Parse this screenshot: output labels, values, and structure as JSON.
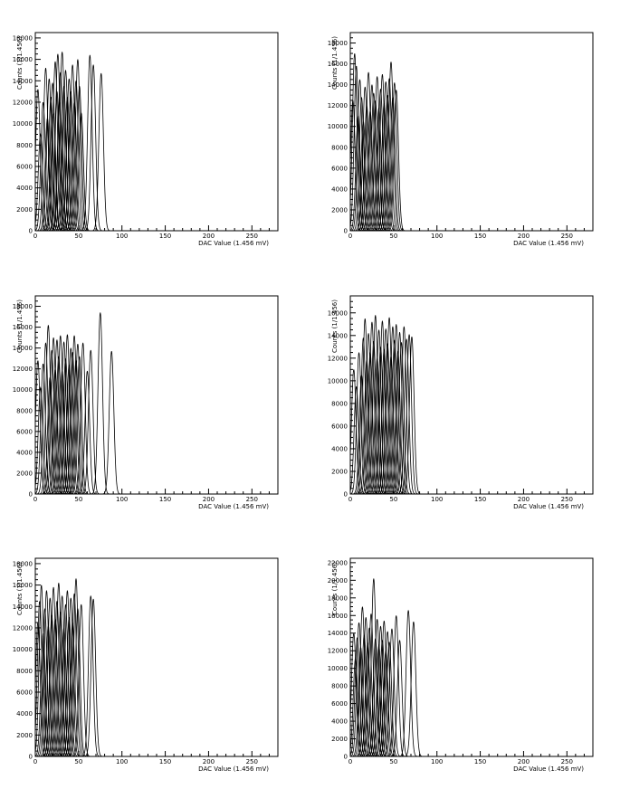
{
  "chart_data": [
    {
      "type": "line",
      "xlabel": "DAC Value (1.456 mV)",
      "ylabel": "Counts (1/1.456)",
      "xlim": [
        0,
        280
      ],
      "ylim": [
        0,
        18500
      ],
      "x_ticks": [
        0,
        50,
        100,
        150,
        200,
        250
      ],
      "y_ticks": [
        0,
        2000,
        4000,
        6000,
        8000,
        10000,
        12000,
        14000,
        16000,
        18000
      ],
      "series_description": "approx. 64 overlapping gaussian-like peaks (one per channel)",
      "peaks": [
        {
          "center": 3,
          "height": 13200
        },
        {
          "center": 6,
          "height": 9000
        },
        {
          "center": 9,
          "height": 12000
        },
        {
          "center": 12,
          "height": 15200
        },
        {
          "center": 14,
          "height": 10500
        },
        {
          "center": 16,
          "height": 14200
        },
        {
          "center": 18,
          "height": 12500
        },
        {
          "center": 20,
          "height": 13800
        },
        {
          "center": 21,
          "height": 11000
        },
        {
          "center": 23,
          "height": 15800
        },
        {
          "center": 25,
          "height": 13000
        },
        {
          "center": 26,
          "height": 16500
        },
        {
          "center": 28,
          "height": 12000
        },
        {
          "center": 29,
          "height": 14800
        },
        {
          "center": 31,
          "height": 16700
        },
        {
          "center": 33,
          "height": 13500
        },
        {
          "center": 35,
          "height": 15000
        },
        {
          "center": 37,
          "height": 12500
        },
        {
          "center": 39,
          "height": 14200
        },
        {
          "center": 41,
          "height": 13000
        },
        {
          "center": 43,
          "height": 15500
        },
        {
          "center": 45,
          "height": 12000
        },
        {
          "center": 47,
          "height": 14000
        },
        {
          "center": 49,
          "height": 16000
        },
        {
          "center": 51,
          "height": 13500
        },
        {
          "center": 53,
          "height": 11000
        },
        {
          "center": 63,
          "height": 16400
        },
        {
          "center": 67,
          "height": 15500
        },
        {
          "center": 76,
          "height": 14700
        }
      ]
    },
    {
      "type": "line",
      "xlabel": "DAC Value (1.456 mV)",
      "ylabel": "Counts (1/1.456)",
      "xlim": [
        0,
        280
      ],
      "ylim": [
        0,
        19000
      ],
      "x_ticks": [
        0,
        50,
        100,
        150,
        200,
        250
      ],
      "y_ticks": [
        0,
        2000,
        4000,
        6000,
        8000,
        10000,
        12000,
        14000,
        16000,
        18000
      ],
      "series_description": "approx. 64 overlapping gaussian-like peaks (one per channel)",
      "peaks": [
        {
          "center": 3,
          "height": 12500
        },
        {
          "center": 5,
          "height": 17000
        },
        {
          "center": 7,
          "height": 15800
        },
        {
          "center": 9,
          "height": 11000
        },
        {
          "center": 11,
          "height": 14500
        },
        {
          "center": 13,
          "height": 12800
        },
        {
          "center": 15,
          "height": 10500
        },
        {
          "center": 17,
          "height": 13800
        },
        {
          "center": 19,
          "height": 12000
        },
        {
          "center": 21,
          "height": 15200
        },
        {
          "center": 23,
          "height": 11500
        },
        {
          "center": 25,
          "height": 14000
        },
        {
          "center": 27,
          "height": 13200
        },
        {
          "center": 29,
          "height": 12500
        },
        {
          "center": 31,
          "height": 14800
        },
        {
          "center": 33,
          "height": 11800
        },
        {
          "center": 35,
          "height": 13600
        },
        {
          "center": 37,
          "height": 15000
        },
        {
          "center": 39,
          "height": 12200
        },
        {
          "center": 41,
          "height": 14300
        },
        {
          "center": 43,
          "height": 13000
        },
        {
          "center": 45,
          "height": 14600
        },
        {
          "center": 47,
          "height": 16200
        },
        {
          "center": 49,
          "height": 12800
        },
        {
          "center": 51,
          "height": 14200
        },
        {
          "center": 53,
          "height": 13500
        }
      ]
    },
    {
      "type": "line",
      "xlabel": "DAC Value (1.456 mV)",
      "ylabel": "Counts (1/1.456)",
      "xlim": [
        0,
        280
      ],
      "ylim": [
        0,
        19000
      ],
      "x_ticks": [
        0,
        50,
        100,
        150,
        200,
        250
      ],
      "y_ticks": [
        0,
        2000,
        4000,
        6000,
        8000,
        10000,
        12000,
        14000,
        16000,
        18000
      ],
      "series_description": "approx. 64 overlapping gaussian-like peaks (one per channel)",
      "peaks": [
        {
          "center": 3,
          "height": 12800
        },
        {
          "center": 6,
          "height": 10200
        },
        {
          "center": 9,
          "height": 12500
        },
        {
          "center": 12,
          "height": 14500
        },
        {
          "center": 15,
          "height": 16200
        },
        {
          "center": 17,
          "height": 11200
        },
        {
          "center": 19,
          "height": 13800
        },
        {
          "center": 21,
          "height": 15000
        },
        {
          "center": 23,
          "height": 12000
        },
        {
          "center": 25,
          "height": 14800
        },
        {
          "center": 27,
          "height": 13200
        },
        {
          "center": 29,
          "height": 15200
        },
        {
          "center": 31,
          "height": 11800
        },
        {
          "center": 33,
          "height": 14600
        },
        {
          "center": 35,
          "height": 13000
        },
        {
          "center": 37,
          "height": 15300
        },
        {
          "center": 39,
          "height": 12400
        },
        {
          "center": 41,
          "height": 14000
        },
        {
          "center": 43,
          "height": 13600
        },
        {
          "center": 45,
          "height": 15200
        },
        {
          "center": 47,
          "height": 12800
        },
        {
          "center": 49,
          "height": 14400
        },
        {
          "center": 51,
          "height": 13200
        },
        {
          "center": 55,
          "height": 14500
        },
        {
          "center": 60,
          "height": 11800
        },
        {
          "center": 64,
          "height": 13800
        },
        {
          "center": 75,
          "height": 17400
        },
        {
          "center": 88,
          "height": 13700
        }
      ]
    },
    {
      "type": "line",
      "xlabel": "DAC Value (1.456 mV)",
      "ylabel": "Counts (1/1.456)",
      "xlim": [
        0,
        280
      ],
      "ylim": [
        0,
        17500
      ],
      "x_ticks": [
        0,
        50,
        100,
        150,
        200,
        250
      ],
      "y_ticks": [
        0,
        2000,
        4000,
        6000,
        8000,
        10000,
        12000,
        14000,
        16000
      ],
      "series_description": "approx. 64 overlapping gaussian-like peaks (one per channel)",
      "peaks": [
        {
          "center": 4,
          "height": 11000
        },
        {
          "center": 7,
          "height": 9500
        },
        {
          "center": 10,
          "height": 12500
        },
        {
          "center": 13,
          "height": 10500
        },
        {
          "center": 15,
          "height": 13800
        },
        {
          "center": 17,
          "height": 15500
        },
        {
          "center": 19,
          "height": 11800
        },
        {
          "center": 21,
          "height": 14200
        },
        {
          "center": 23,
          "height": 12500
        },
        {
          "center": 25,
          "height": 15200
        },
        {
          "center": 27,
          "height": 13500
        },
        {
          "center": 29,
          "height": 15800
        },
        {
          "center": 31,
          "height": 12000
        },
        {
          "center": 33,
          "height": 14500
        },
        {
          "center": 35,
          "height": 13000
        },
        {
          "center": 37,
          "height": 15300
        },
        {
          "center": 39,
          "height": 12800
        },
        {
          "center": 41,
          "height": 14600
        },
        {
          "center": 43,
          "height": 13300
        },
        {
          "center": 45,
          "height": 15600
        },
        {
          "center": 47,
          "height": 12200
        },
        {
          "center": 49,
          "height": 14800
        },
        {
          "center": 51,
          "height": 13600
        },
        {
          "center": 53,
          "height": 15000
        },
        {
          "center": 55,
          "height": 12600
        },
        {
          "center": 57,
          "height": 14300
        },
        {
          "center": 59,
          "height": 13400
        },
        {
          "center": 62,
          "height": 14800
        },
        {
          "center": 65,
          "height": 13700
        },
        {
          "center": 68,
          "height": 14100
        },
        {
          "center": 71,
          "height": 13900
        }
      ]
    },
    {
      "type": "line",
      "xlabel": "DAC Value (1.456 mV)",
      "ylabel": "Counts (1/1.456)",
      "xlim": [
        0,
        280
      ],
      "ylim": [
        0,
        18500
      ],
      "x_ticks": [
        0,
        50,
        100,
        150,
        200,
        250
      ],
      "y_ticks": [
        0,
        2000,
        4000,
        6000,
        8000,
        10000,
        12000,
        14000,
        16000,
        18000
      ],
      "series_description": "approx. 64 overlapping gaussian-like peaks (one per channel)",
      "peaks": [
        {
          "center": 3,
          "height": 12500
        },
        {
          "center": 5,
          "height": 14500
        },
        {
          "center": 7,
          "height": 16000
        },
        {
          "center": 9,
          "height": 11500
        },
        {
          "center": 11,
          "height": 13800
        },
        {
          "center": 13,
          "height": 15500
        },
        {
          "center": 15,
          "height": 12200
        },
        {
          "center": 17,
          "height": 14800
        },
        {
          "center": 19,
          "height": 13200
        },
        {
          "center": 21,
          "height": 15800
        },
        {
          "center": 23,
          "height": 12800
        },
        {
          "center": 25,
          "height": 14500
        },
        {
          "center": 27,
          "height": 16200
        },
        {
          "center": 29,
          "height": 13500
        },
        {
          "center": 31,
          "height": 15000
        },
        {
          "center": 33,
          "height": 12000
        },
        {
          "center": 35,
          "height": 14200
        },
        {
          "center": 37,
          "height": 15500
        },
        {
          "center": 39,
          "height": 13000
        },
        {
          "center": 41,
          "height": 14800
        },
        {
          "center": 43,
          "height": 12500
        },
        {
          "center": 45,
          "height": 15200
        },
        {
          "center": 47,
          "height": 16600
        },
        {
          "center": 49,
          "height": 13800
        },
        {
          "center": 53,
          "height": 14200
        },
        {
          "center": 64,
          "height": 15000
        },
        {
          "center": 67,
          "height": 14700
        }
      ]
    },
    {
      "type": "line",
      "xlabel": "DAC Value (1.456 mV)",
      "ylabel": "Counts (1/1.456)",
      "xlim": [
        0,
        280
      ],
      "ylim": [
        0,
        22500
      ],
      "x_ticks": [
        0,
        50,
        100,
        150,
        200,
        250
      ],
      "y_ticks": [
        0,
        2000,
        4000,
        6000,
        8000,
        10000,
        12000,
        14000,
        16000,
        18000,
        20000,
        22000
      ],
      "series_description": "approx. 64 overlapping gaussian-like peaks (one per channel)",
      "peaks": [
        {
          "center": 4,
          "height": 14000
        },
        {
          "center": 6,
          "height": 11200
        },
        {
          "center": 8,
          "height": 13500
        },
        {
          "center": 10,
          "height": 15200
        },
        {
          "center": 12,
          "height": 12400
        },
        {
          "center": 14,
          "height": 17000
        },
        {
          "center": 16,
          "height": 13800
        },
        {
          "center": 18,
          "height": 15800
        },
        {
          "center": 20,
          "height": 12800
        },
        {
          "center": 22,
          "height": 14600
        },
        {
          "center": 24,
          "height": 16200
        },
        {
          "center": 27,
          "height": 20200
        },
        {
          "center": 29,
          "height": 13400
        },
        {
          "center": 31,
          "height": 15600
        },
        {
          "center": 33,
          "height": 12600
        },
        {
          "center": 35,
          "height": 14800
        },
        {
          "center": 37,
          "height": 13200
        },
        {
          "center": 39,
          "height": 15400
        },
        {
          "center": 41,
          "height": 12000
        },
        {
          "center": 43,
          "height": 14200
        },
        {
          "center": 45,
          "height": 13000
        },
        {
          "center": 48,
          "height": 14500
        },
        {
          "center": 53,
          "height": 16000
        },
        {
          "center": 57,
          "height": 13200
        },
        {
          "center": 67,
          "height": 16600
        },
        {
          "center": 73,
          "height": 15300
        }
      ]
    }
  ]
}
